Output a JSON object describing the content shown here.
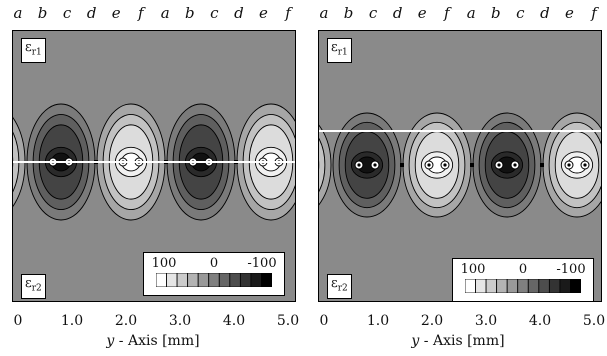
{
  "top_labels": [
    "a",
    "b",
    "c",
    "d",
    "e",
    "f",
    "a",
    "b",
    "c",
    "d",
    "e",
    "f"
  ],
  "x_ticks": [
    "0",
    "1.0",
    "2.0",
    "3.0",
    "4.0",
    "5.0"
  ],
  "x_axis": {
    "var": "y",
    "rest": " - Axis [mm]"
  },
  "region_top": {
    "symbol": "ε",
    "sub": "r1"
  },
  "region_bottom": {
    "symbol": "ε",
    "sub": "r2"
  },
  "legend": {
    "values": [
      "100",
      "0",
      "-100"
    ],
    "shades": [
      "#ffffff",
      "#e6e6e6",
      "#cccccc",
      "#b3b3b3",
      "#999999",
      "#808080",
      "#666666",
      "#4d4d4d",
      "#333333",
      "#1a1a1a",
      "#000000"
    ]
  },
  "panels": [
    {
      "id": "left",
      "interface_line_level": 0.5
    },
    {
      "id": "right",
      "interface_line_level": 0.35
    }
  ]
}
